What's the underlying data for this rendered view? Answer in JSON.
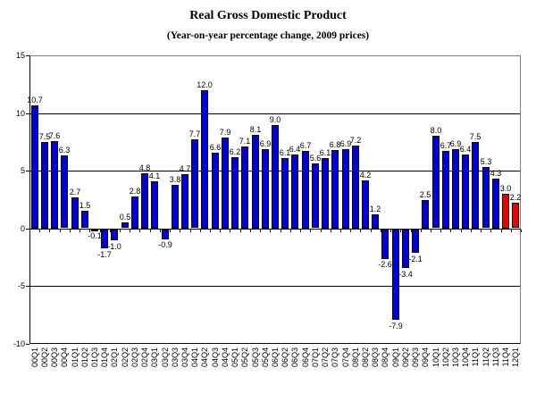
{
  "chart_data": {
    "type": "bar",
    "title": "Real Gross Domestic Product",
    "subtitle": "(Year-on-year percentage change, 2009 prices)",
    "categories": [
      "00Q1",
      "00Q2",
      "00Q3",
      "00Q4",
      "01Q1",
      "01Q2",
      "01Q3",
      "01Q4",
      "02Q1",
      "02Q2",
      "02Q3",
      "02Q4",
      "03Q1",
      "03Q2",
      "03Q3",
      "03Q4",
      "04Q1",
      "04Q2",
      "04Q3",
      "04Q4",
      "05Q1",
      "05Q2",
      "05Q3",
      "05Q4",
      "06Q1",
      "06Q2",
      "06Q3",
      "06Q4",
      "07Q1",
      "07Q2",
      "07Q3",
      "07Q4",
      "08Q1",
      "08Q2",
      "08Q3",
      "08Q4",
      "09Q1",
      "09Q2",
      "09Q3",
      "09Q4",
      "10Q1",
      "10Q2",
      "10Q3",
      "10Q4",
      "11Q1",
      "11Q2",
      "11Q3",
      "11Q4",
      "12Q1"
    ],
    "values": [
      10.7,
      7.5,
      7.6,
      6.3,
      2.7,
      1.5,
      -0.1,
      -1.7,
      -1.0,
      0.5,
      2.8,
      4.8,
      4.1,
      -0.9,
      3.8,
      4.7,
      7.7,
      12.0,
      6.6,
      7.9,
      6.2,
      7.1,
      8.1,
      6.9,
      9.0,
      6.1,
      6.4,
      6.7,
      5.6,
      6.1,
      6.8,
      6.9,
      7.2,
      4.2,
      1.2,
      -2.6,
      -7.9,
      -3.4,
      -2.1,
      2.5,
      8.0,
      6.7,
      6.9,
      6.4,
      7.5,
      5.3,
      4.3,
      3.0,
      2.2
    ],
    "ylim": [
      -10,
      15
    ],
    "yticks": [
      15,
      10,
      5,
      0,
      -5,
      -10
    ],
    "gridline_values": [
      10,
      5,
      -5
    ],
    "grid": true,
    "legend": "none",
    "data_labels": true,
    "label_format": "one_decimal",
    "bar_color": "#0000D8",
    "highlight_color": "#EE0000",
    "highlight_categories": [
      "11Q4",
      "12Q1"
    ],
    "axis_color": "#000000",
    "plot_border_color": "#808080"
  }
}
